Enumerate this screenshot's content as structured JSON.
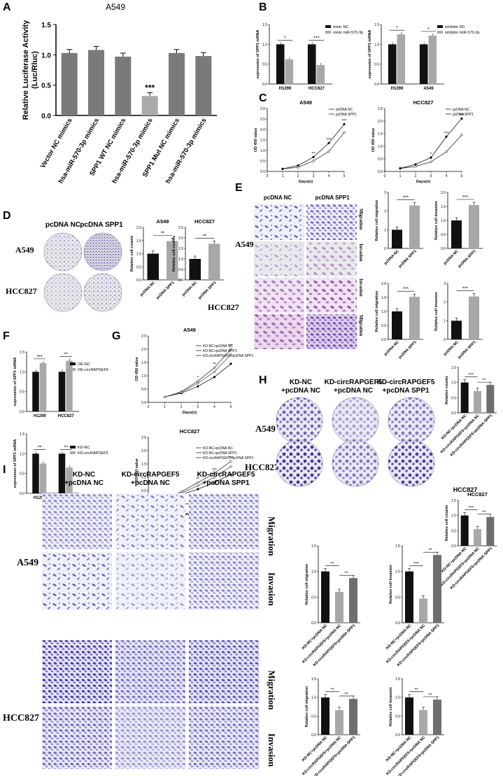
{
  "panels": {
    "A": {
      "label": "A",
      "title": "A549",
      "ylabel": "Relative Luciferase Activity\n(Luc/Rluc)",
      "ylim": [
        0,
        1.5
      ],
      "yticks": [
        "0.0",
        "0.5",
        "1.0",
        "1.5"
      ],
      "categories": [
        "Vector NC mimics",
        "Vector hsa-miR-570-3p mimics",
        "SPP1 WT NC mimics",
        "SPP1 WT +hsa-miR-570-3p mimics",
        "SPP1 Mut NC mimics",
        "SPP1 Mut +hsa-miR-570-3p mimics"
      ],
      "values": [
        1.03,
        1.08,
        0.97,
        0.32,
        1.03,
        0.98
      ],
      "colors": [
        "#7a7a7a",
        "#7a7a7a",
        "#7a7a7a",
        "#aaaaaa",
        "#7a7a7a",
        "#7a7a7a"
      ],
      "sig": "***"
    },
    "B": {
      "label": "B"
    },
    "C": {
      "label": "C"
    },
    "D": {
      "label": "D",
      "col_headers": [
        "pcDNA NC",
        "pcDNA SPP1"
      ],
      "row_labels": [
        "A549",
        "HCC827"
      ]
    },
    "E": {
      "label": "E",
      "col_headers": [
        "pcDNA NC",
        "pcDNA SPP1"
      ],
      "row_labels": [
        "A549",
        "HCC827"
      ],
      "side_labels": [
        "Migration",
        "Invasion",
        "Invasion",
        "Migration"
      ]
    },
    "F": {
      "label": "F"
    },
    "G": {
      "label": "G"
    },
    "H": {
      "label": "H",
      "col_headers": [
        "KD-NC\n+pcDNA NC",
        "KD-circRAPGEF5\n+pcDNA NC",
        "KD-circRAPGEF5\n+pcDNA SPP1"
      ],
      "row_labels": [
        "A549",
        "HCC827"
      ],
      "chart_title": "HCC827"
    },
    "I": {
      "label": "I",
      "col_headers": [
        "KD-NC\n+pcDNA NC",
        "KD-circRAPGEF5\n+pcDNA NC",
        "KD-circRAPGEF5\n+pcDNA SPP1"
      ],
      "row_labels": [
        "A549",
        "HCC827"
      ],
      "side_labels": [
        "Migration",
        "Invasion",
        "Migration",
        "Invasion"
      ]
    }
  },
  "chart_data": [
    {
      "id": "A",
      "type": "bar",
      "title": "A549",
      "ylabel": "Relative Luciferase Activity (Luc/Rluc)",
      "ylim": [
        0,
        1.5
      ],
      "categories": [
        "Vector NC mimics",
        "Vector hsa-miR-570-3p mimics",
        "SPP1 WT NC mimics",
        "SPP1 WT +hsa-miR-570-3p mimics",
        "SPP1 Mut NC mimics",
        "SPP1 Mut +hsa-miR-570-3p mimics"
      ],
      "values": [
        1.03,
        1.08,
        0.97,
        0.32,
        1.03,
        0.98
      ],
      "annotations": [
        "***"
      ]
    },
    {
      "id": "B1",
      "type": "bar",
      "ylabel": "expression of SPP1 mRNA",
      "ylim": [
        0,
        1.5
      ],
      "yticks": [
        "0.0",
        "0.5",
        "1.0",
        "1.5"
      ],
      "categories": [
        "H1299",
        "HCC827"
      ],
      "series": [
        {
          "name": "minic NC",
          "color": "#111111",
          "values": [
            1.0,
            1.0
          ]
        },
        {
          "name": "minic miR-570-3p",
          "color": "#a8a8a8",
          "values": [
            0.62,
            0.48
          ]
        }
      ],
      "sig": [
        "*",
        "***"
      ]
    },
    {
      "id": "B2",
      "type": "bar",
      "ylabel": "expression of SPP1 mRNA",
      "ylim": [
        0,
        1.5
      ],
      "yticks": [
        "0.0",
        "0.5",
        "1.0",
        "1.5"
      ],
      "categories": [
        "H1299",
        "A549"
      ],
      "series": [
        {
          "name": "inhibitor NC",
          "color": "#111111",
          "values": [
            1.0,
            1.0
          ]
        },
        {
          "name": "inhibitor miR-570-3p",
          "color": "#a8a8a8",
          "values": [
            1.25,
            1.22
          ]
        }
      ],
      "sig": [
        "*",
        "*"
      ]
    },
    {
      "id": "C1",
      "type": "line",
      "title": "A549",
      "xlabel": "Days(n)",
      "ylabel": "OD 450 value",
      "xlim": [
        0,
        5
      ],
      "ylim": [
        0,
        3
      ],
      "yticks": [
        "0.0",
        "0.5",
        "1.0",
        "1.5",
        "2.0",
        "2.5",
        "3.0"
      ],
      "x": [
        1,
        2,
        3,
        4,
        5
      ],
      "series": [
        {
          "name": "pcDNA NC",
          "values": [
            0.12,
            0.2,
            0.5,
            0.95,
            1.85
          ]
        },
        {
          "name": "pcDNA SPP1",
          "values": [
            0.12,
            0.28,
            0.68,
            1.35,
            2.25
          ]
        }
      ],
      "sig": [
        "**",
        "***",
        "***"
      ]
    },
    {
      "id": "C2",
      "type": "line",
      "title": "HCC827",
      "xlabel": "Days(n)",
      "ylabel": "OD 450 value",
      "xlim": [
        0,
        5
      ],
      "ylim": [
        0,
        2.5
      ],
      "yticks": [
        "0.0",
        "0.5",
        "1.0",
        "1.5",
        "2.0",
        "2.5"
      ],
      "x": [
        1,
        2,
        3,
        4,
        5
      ],
      "series": [
        {
          "name": "pcDNA NC",
          "values": [
            0.12,
            0.2,
            0.38,
            0.78,
            1.45
          ]
        },
        {
          "name": "pcDNA SPP1",
          "values": [
            0.12,
            0.28,
            0.55,
            1.38,
            2.1
          ]
        }
      ],
      "sig": [
        "*",
        "***",
        "***"
      ]
    },
    {
      "id": "D1",
      "type": "bar",
      "title": "A549",
      "ylabel": "Relative cell counts",
      "ylim": [
        0,
        2
      ],
      "yticks": [
        "0.0",
        "0.5",
        "1.0",
        "1.5",
        "2.0"
      ],
      "categories": [
        "pcDNA NC",
        "pcDNA SPP1"
      ],
      "values": [
        1.0,
        1.48
      ],
      "colors": [
        "#111111",
        "#a8a8a8"
      ],
      "sig": [
        "**"
      ]
    },
    {
      "id": "D2",
      "type": "bar",
      "title": "HCC827",
      "ylabel": "Relative cell counts",
      "ylim": [
        0,
        2.5
      ],
      "yticks": [
        "0.0",
        "0.5",
        "1.0",
        "1.5",
        "2.0",
        "2.5"
      ],
      "categories": [
        "pcDNA NC",
        "pcDNA SPP1"
      ],
      "values": [
        1.0,
        1.72
      ],
      "colors": [
        "#111111",
        "#a8a8a8"
      ],
      "sig": [
        "**"
      ]
    },
    {
      "id": "E1",
      "type": "bar",
      "ylabel": "Relative cell migration",
      "ylim": [
        0,
        3
      ],
      "yticks": [
        "0",
        "1",
        "2",
        "3"
      ],
      "categories": [
        "pcDNA NC",
        "pcDNA SPP1"
      ],
      "values": [
        1.0,
        2.3
      ],
      "colors": [
        "#111111",
        "#a8a8a8"
      ],
      "sig": [
        "***"
      ]
    },
    {
      "id": "E2",
      "type": "bar",
      "ylabel": "Relative cell invasion",
      "ylim": [
        0,
        2
      ],
      "yticks": [
        "0.0",
        "0.5",
        "1.0",
        "1.5",
        "2.0"
      ],
      "categories": [
        "pcDNA NC",
        "pcDNA SPP1"
      ],
      "values": [
        1.0,
        1.55
      ],
      "colors": [
        "#111111",
        "#a8a8a8"
      ],
      "sig": [
        "***"
      ]
    },
    {
      "id": "E3",
      "type": "bar",
      "ylabel": "Relative cell migration",
      "ylim": [
        0,
        2
      ],
      "yticks": [
        "0.0",
        "0.5",
        "1.0",
        "1.5",
        "2.0"
      ],
      "categories": [
        "pcDNA NC",
        "pcDNA SPP1"
      ],
      "values": [
        1.0,
        1.52
      ],
      "colors": [
        "#111111",
        "#a8a8a8"
      ],
      "sig": [
        "***"
      ]
    },
    {
      "id": "E4",
      "type": "bar",
      "ylabel": "Relative cell invasion",
      "ylim": [
        0,
        3
      ],
      "yticks": [
        "0",
        "1",
        "2",
        "3"
      ],
      "categories": [
        "pcDNA NC",
        "pcDNA SPP1"
      ],
      "values": [
        1.0,
        2.3
      ],
      "colors": [
        "#111111",
        "#a8a8a8"
      ],
      "sig": [
        "***"
      ]
    },
    {
      "id": "F1",
      "type": "bar",
      "ylabel": "expression of SPP1 mRNA",
      "ylim": [
        0,
        1.5
      ],
      "yticks": [
        "0.0",
        "0.5",
        "1.0",
        "1.5"
      ],
      "categories": [
        "H1299",
        "HCC827"
      ],
      "series": [
        {
          "name": "OE-NC",
          "color": "#111111",
          "values": [
            1.0,
            1.0
          ]
        },
        {
          "name": "OE-circRAPGEF5",
          "color": "#a8a8a8",
          "values": [
            1.22,
            1.28
          ]
        }
      ],
      "sig": [
        "***",
        "**"
      ]
    },
    {
      "id": "F2",
      "type": "bar",
      "ylabel": "expression of SPP1 mRNA",
      "ylim": [
        0,
        1.5
      ],
      "yticks": [
        "0.0",
        "0.5",
        "1.0",
        "1.5"
      ],
      "categories": [
        "H1299",
        "A549"
      ],
      "series": [
        {
          "name": "KD-NC",
          "color": "#111111",
          "values": [
            1.0,
            1.0
          ]
        },
        {
          "name": "KD-circRAPGEF5",
          "color": "#a8a8a8",
          "values": [
            0.75,
            0.65
          ]
        }
      ],
      "sig": [
        "**",
        "**"
      ]
    },
    {
      "id": "G1",
      "type": "line",
      "title": "A549",
      "xlabel": "Days(n)",
      "ylabel": "OD 450 value",
      "xlim": [
        0,
        5
      ],
      "ylim": [
        0,
        2.5
      ],
      "yticks": [
        "0.0",
        "0.5",
        "1.0",
        "1.5",
        "2.0",
        "2.5"
      ],
      "x": [
        1,
        2,
        3,
        4,
        5
      ],
      "series": [
        {
          "name": "KD-NC+pcDNA NC",
          "values": [
            0.2,
            0.4,
            0.8,
            1.3,
            2.0
          ]
        },
        {
          "name": "KD-NC+pcDNA SPP1",
          "values": [
            0.2,
            0.35,
            0.6,
            0.95,
            1.45
          ]
        },
        {
          "name": "KD-circRAPGEF5+pcDNA SPP1",
          "values": [
            0.2,
            0.38,
            0.72,
            1.15,
            1.8
          ]
        }
      ],
      "sig": [
        "*",
        "**",
        "**"
      ]
    },
    {
      "id": "G2",
      "type": "line",
      "title": "HCC827",
      "xlabel": "Days(n)",
      "ylabel": "OD 450 value",
      "xlim": [
        0,
        5
      ],
      "ylim": [
        0,
        2.5
      ],
      "yticks": [
        "0.0",
        "0.5",
        "1.0",
        "1.5",
        "2.0",
        "2.5"
      ],
      "x": [
        1,
        2,
        3,
        4,
        5
      ],
      "series": [
        {
          "name": "KD-NC+pcDNA NC",
          "values": [
            0.2,
            0.45,
            0.8,
            1.15,
            1.6
          ]
        },
        {
          "name": "KD-NC+pcDNA SPP1",
          "values": [
            0.2,
            0.35,
            0.55,
            0.8,
            1.1
          ]
        },
        {
          "name": "KD-circRAPGEF5+pcDNA SPP1",
          "values": [
            0.2,
            0.4,
            0.68,
            1.0,
            1.4
          ]
        }
      ],
      "sig": [
        "**",
        "***",
        "***"
      ]
    },
    {
      "id": "H1",
      "type": "bar",
      "ylabel": "Relative counts",
      "ylim": [
        0,
        1.5
      ],
      "yticks": [
        "0.0",
        "0.5",
        "1.0",
        "1.5"
      ],
      "categories": [
        "KD-NC+pcDNA NC",
        "KD-circRAPGEF5+pcDNA NC",
        "KD-circRAPGEF5+pcDNA SPP1"
      ],
      "values": [
        1.0,
        0.72,
        0.92
      ],
      "colors": [
        "#111111",
        "#a8a8a8",
        "#6e6e6e"
      ],
      "sig": [
        "***",
        "**"
      ]
    },
    {
      "id": "H2",
      "type": "bar",
      "title": "HCC827",
      "ylabel": "Relative cell counts",
      "ylim": [
        0,
        1.5
      ],
      "yticks": [
        "0.0",
        "0.5",
        "1.0",
        "1.5"
      ],
      "categories": [
        "KD-NC+pcDNA NC",
        "KD-circRAPGEF5+pcDNA NC",
        "KD-circRAPGEF5+pcDNA SPP1"
      ],
      "values": [
        1.0,
        0.55,
        0.95
      ],
      "colors": [
        "#111111",
        "#a8a8a8",
        "#6e6e6e"
      ],
      "sig": [
        "***",
        "**"
      ]
    },
    {
      "id": "I1",
      "type": "bar",
      "ylabel": "Relative cell migration",
      "ylim": [
        0,
        1.5
      ],
      "yticks": [
        "0.0",
        "0.5",
        "1.0",
        "1.5"
      ],
      "categories": [
        "KD-NC+pcDNA NC",
        "KD-circRAPGEF5+pcDNA NC",
        "KD-circRAPGEF5+pcDNA SPP1"
      ],
      "values": [
        1.0,
        0.6,
        0.87
      ],
      "colors": [
        "#111111",
        "#a8a8a8",
        "#6e6e6e"
      ],
      "sig": [
        "**",
        "**"
      ]
    },
    {
      "id": "I2",
      "type": "bar",
      "ylabel": "Relative cell invasion",
      "ylim": [
        0,
        1.5
      ],
      "yticks": [
        "0.0",
        "0.5",
        "1.0",
        "1.5"
      ],
      "categories": [
        "KD-NC+pcDNA NC",
        "KD-circRAPGEF5+pcDNA NC",
        "KD-circRAPGEF5+pcDNA SPP1"
      ],
      "values": [
        1.0,
        0.47,
        1.32
      ],
      "colors": [
        "#111111",
        "#a8a8a8",
        "#6e6e6e"
      ],
      "sig": [
        "***",
        "**"
      ]
    },
    {
      "id": "I3",
      "type": "bar",
      "ylabel": "Relative cell migration",
      "ylim": [
        0,
        1.5
      ],
      "yticks": [
        "0.0",
        "0.5",
        "1.0",
        "1.5"
      ],
      "categories": [
        "KD-NC+pcDNA NC",
        "KD-circRAPGEF5+pcDNA NC",
        "KD-circRAPGEF5+pcDNA SPP1"
      ],
      "values": [
        1.0,
        0.66,
        0.96
      ],
      "colors": [
        "#111111",
        "#a8a8a8",
        "#6e6e6e"
      ],
      "sig": [
        "**",
        "**"
      ]
    },
    {
      "id": "I4",
      "type": "bar",
      "ylabel": "Relative cell invasion",
      "ylim": [
        0,
        1.5
      ],
      "yticks": [
        "0.0",
        "0.5",
        "1.0",
        "1.5"
      ],
      "categories": [
        "KD-NC+pcDNA NC",
        "KD-circRAPGEF5+pcDNA NC",
        "KD-circRAPGEF5+pcDNA SPP1"
      ],
      "values": [
        1.0,
        0.66,
        0.94
      ],
      "colors": [
        "#111111",
        "#a8a8a8",
        "#6e6e6e"
      ],
      "sig": [
        "**",
        "**"
      ]
    }
  ]
}
